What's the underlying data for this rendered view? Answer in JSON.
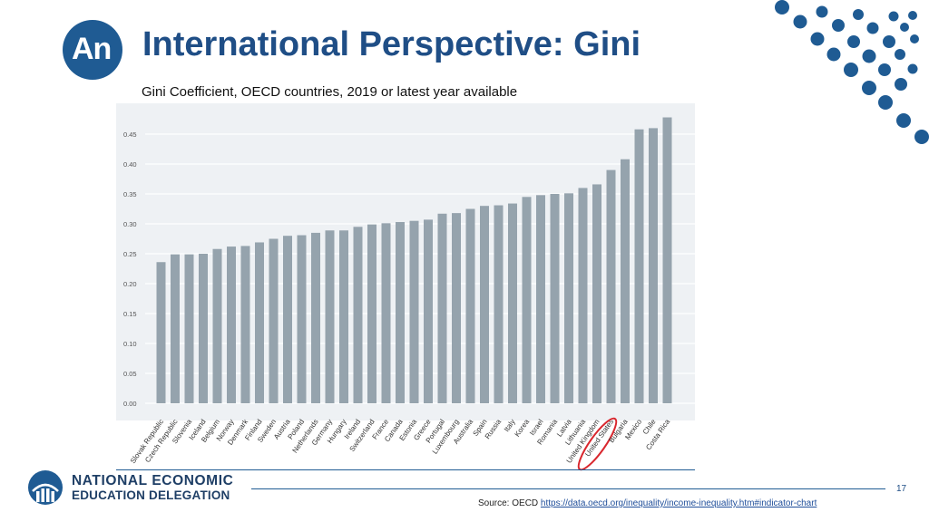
{
  "slide": {
    "logo_text": "An",
    "title": "International Perspective: Gini",
    "subtitle": "Gini Coefficient, OECD countries, 2019 or latest year available",
    "page_number": "17",
    "source_label": "Source: OECD",
    "source_link": "https://data.oecd.org/inequality/income-inequality.htm#indicator-chart"
  },
  "brand": {
    "line1": "NATIONAL ECONOMIC",
    "line2": "EDUCATION DELEGATION",
    "primary_color": "#1f5b93"
  },
  "chart_data": {
    "type": "bar",
    "title": "",
    "xlabel": "",
    "ylabel": "",
    "ylim": [
      0,
      0.47
    ],
    "yticks": [
      "0.00",
      "0.05",
      "0.10",
      "0.15",
      "0.20",
      "0.25",
      "0.30",
      "0.35",
      "0.40",
      "0.45"
    ],
    "grid": true,
    "bar_color": "#95a3ad",
    "highlight_color": "#d9272e",
    "highlighted": [
      "United States"
    ],
    "categories": [
      "Slovak Republic",
      "Czech Republic",
      "Slovenia",
      "Iceland",
      "Belgium",
      "Norway",
      "Denmark",
      "Finland",
      "Sweden",
      "Austria",
      "Poland",
      "Netherlands",
      "Germany",
      "Hungary",
      "Ireland",
      "Switzerland",
      "France",
      "Canada",
      "Estonia",
      "Greece",
      "Portugal",
      "Luxembourg",
      "Australia",
      "Spain",
      "Russia",
      "Italy",
      "Korea",
      "Israel",
      "Romania",
      "Latvia",
      "Lithuania",
      "United Kingdom",
      "United States",
      "Bulgaria",
      "Mexico",
      "Chile",
      "Costa Rica"
    ],
    "values": [
      0.236,
      0.249,
      0.249,
      0.25,
      0.258,
      0.262,
      0.263,
      0.269,
      0.275,
      0.28,
      0.281,
      0.285,
      0.289,
      0.289,
      0.295,
      0.299,
      0.301,
      0.303,
      0.305,
      0.307,
      0.317,
      0.318,
      0.325,
      0.33,
      0.331,
      0.334,
      0.345,
      0.348,
      0.35,
      0.351,
      0.36,
      0.366,
      0.39,
      0.408,
      0.458,
      0.46,
      0.478
    ]
  }
}
